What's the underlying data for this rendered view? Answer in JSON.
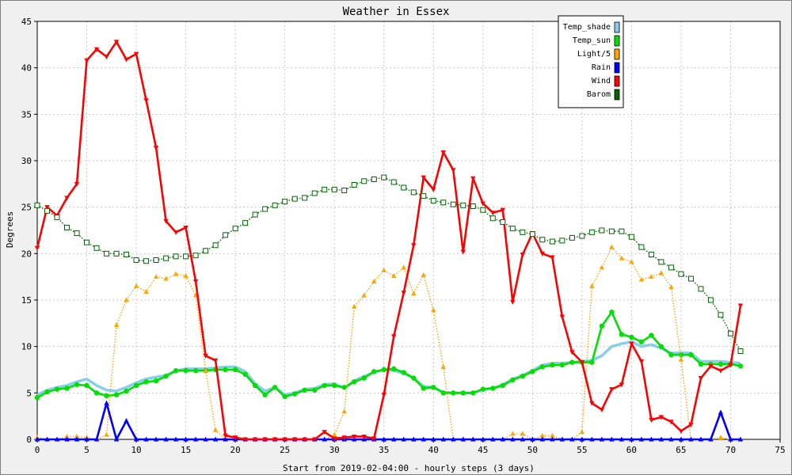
{
  "chart_data": {
    "type": "line",
    "title": "Weather in Essex",
    "xlabel": "Start from 2019-02-04:00 - hourly steps (3 days)",
    "ylabel": "Degrees",
    "xlim": [
      0,
      75
    ],
    "ylim": [
      0,
      45
    ],
    "x_ticks": [
      0,
      5,
      10,
      15,
      20,
      25,
      30,
      35,
      40,
      45,
      50,
      55,
      60,
      65,
      70,
      75
    ],
    "y_ticks": [
      0,
      5,
      10,
      15,
      20,
      25,
      30,
      35,
      40,
      45
    ],
    "grid": true,
    "legend_position": "top-right",
    "series": [
      {
        "name": "Temp_shade",
        "color": "#87ceeb",
        "marker": "none",
        "style": "solid",
        "values": [
          4.8,
          5.3,
          5.6,
          5.8,
          6.2,
          6.5,
          5.8,
          5.3,
          5.2,
          5.6,
          6.1,
          6.5,
          6.7,
          6.9,
          7.4,
          7.6,
          7.6,
          7.6,
          7.7,
          7.8,
          7.8,
          7.3,
          6.0,
          5.2,
          5.6,
          4.8,
          5.0,
          5.4,
          5.5,
          5.9,
          6.0,
          5.5,
          6.3,
          6.8,
          7.2,
          7.5,
          7.4,
          7.1,
          6.6,
          5.7,
          5.6,
          5.1,
          5.0,
          5.0,
          5.0,
          5.4,
          5.5,
          5.9,
          6.5,
          6.9,
          7.4,
          8.0,
          8.2,
          8.2,
          8.3,
          8.4,
          8.5,
          9.0,
          10.0,
          10.3,
          10.5,
          10.0,
          10.2,
          9.8,
          9.3,
          9.3,
          9.3,
          8.4,
          8.4,
          8.4,
          8.3,
          8.2
        ]
      },
      {
        "name": "Temp_sun",
        "color": "#00e000",
        "marker": "circle",
        "style": "solid",
        "values": [
          4.5,
          5.1,
          5.4,
          5.5,
          5.9,
          5.8,
          5.0,
          4.7,
          4.8,
          5.2,
          5.8,
          6.2,
          6.3,
          6.8,
          7.4,
          7.4,
          7.4,
          7.4,
          7.5,
          7.5,
          7.5,
          7.0,
          5.8,
          4.8,
          5.6,
          4.6,
          4.9,
          5.3,
          5.3,
          5.8,
          5.8,
          5.6,
          6.2,
          6.6,
          7.3,
          7.5,
          7.6,
          7.2,
          6.6,
          5.5,
          5.6,
          5.0,
          5.0,
          5.0,
          5.0,
          5.4,
          5.5,
          5.8,
          6.4,
          6.8,
          7.3,
          7.8,
          8.0,
          8.0,
          8.3,
          8.3,
          8.3,
          12.2,
          13.7,
          11.3,
          11.0,
          10.5,
          11.2,
          10.0,
          9.1,
          9.1,
          9.1,
          8.1,
          8.1,
          8.1,
          8.1,
          7.9
        ]
      },
      {
        "name": "Light/5",
        "color": "#ffa500",
        "marker": "triangle-up",
        "style": "dotted",
        "values": [
          0.2,
          0,
          0,
          0.3,
          0.3,
          0.2,
          0,
          0.5,
          12.3,
          15.0,
          16.5,
          15.9,
          17.5,
          17.3,
          17.8,
          17.6,
          15.5,
          7.4,
          1.0,
          0,
          0,
          0,
          0,
          0,
          0,
          0,
          0,
          0,
          0,
          0,
          0.5,
          3.0,
          14.3,
          15.5,
          17.0,
          18.2,
          17.6,
          18.5,
          15.7,
          17.7,
          13.9,
          7.8,
          0,
          0,
          0,
          0,
          0,
          0,
          0.6,
          0.6,
          0,
          0.4,
          0.4,
          0,
          0,
          0.8,
          16.5,
          18.5,
          20.7,
          19.5,
          19.1,
          17.2,
          17.5,
          17.9,
          16.4,
          8.6,
          0,
          0,
          0,
          0.2,
          0,
          0
        ]
      },
      {
        "name": "Rain",
        "color": "#0000ff",
        "marker": "triangle-up",
        "style": "solid",
        "values": [
          0,
          0,
          0,
          0,
          0,
          0,
          0,
          3.9,
          0,
          2.0,
          0,
          0,
          0,
          0,
          0,
          0,
          0,
          0,
          0,
          0,
          0,
          0,
          0,
          0,
          0,
          0,
          0,
          0,
          0,
          0,
          0,
          0,
          0,
          0,
          0,
          0,
          0,
          0,
          0,
          0,
          0,
          0,
          0,
          0,
          0,
          0,
          0,
          0,
          0,
          0,
          0,
          0,
          0,
          0,
          0,
          0,
          0,
          0,
          0,
          0,
          0,
          0,
          0,
          0,
          0,
          0,
          0,
          0,
          0,
          2.9,
          0,
          0
        ]
      },
      {
        "name": "Wind",
        "color": "#ff0000",
        "marker": "triangle-down",
        "style": "solid",
        "values": [
          20.6,
          25.0,
          24.1,
          26.0,
          27.5,
          40.8,
          42.0,
          41.2,
          42.8,
          40.9,
          41.5,
          36.5,
          31.4,
          23.5,
          22.3,
          22.8,
          17.0,
          9.0,
          8.5,
          0.4,
          0.2,
          0,
          0,
          0,
          0,
          0,
          0,
          0,
          0,
          0.8,
          0.1,
          0.2,
          0.3,
          0.3,
          0.1,
          4.8,
          11.1,
          15.8,
          20.9,
          28.2,
          26.9,
          30.9,
          29.0,
          20.2,
          28.1,
          25.4,
          24.4,
          24.7,
          14.8,
          19.9,
          22.2,
          20.0,
          19.6,
          13.2,
          9.4,
          8.3,
          3.9,
          3.2,
          5.4,
          5.9,
          10.3,
          8.4,
          2.1,
          2.4,
          1.9,
          0.9,
          1.6,
          6.6,
          7.9,
          7.4,
          8.0,
          14.4
        ]
      },
      {
        "name": "Barom",
        "color": "#006400",
        "marker": "square",
        "style": "dotted",
        "values": [
          25.2,
          24.6,
          23.9,
          22.8,
          22.2,
          21.2,
          20.6,
          20.0,
          20.0,
          19.9,
          19.3,
          19.2,
          19.3,
          19.5,
          19.7,
          19.7,
          19.8,
          20.3,
          20.9,
          22.0,
          22.7,
          23.3,
          24.2,
          24.8,
          25.2,
          25.6,
          25.9,
          26.0,
          26.5,
          26.9,
          26.9,
          26.8,
          27.4,
          27.8,
          28.0,
          28.2,
          27.7,
          27.1,
          26.6,
          26.2,
          25.7,
          25.5,
          25.3,
          25.2,
          25.1,
          24.7,
          23.8,
          23.4,
          22.7,
          22.3,
          22.1,
          21.5,
          21.3,
          21.4,
          21.7,
          21.9,
          22.3,
          22.5,
          22.4,
          22.4,
          21.8,
          20.7,
          19.9,
          19.1,
          18.5,
          17.8,
          17.3,
          16.2,
          15.0,
          13.4,
          11.4,
          9.5
        ]
      }
    ]
  }
}
